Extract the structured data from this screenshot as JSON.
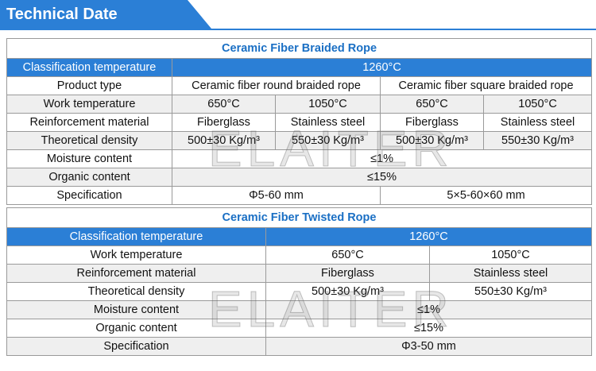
{
  "header": {
    "title": "Technical Date"
  },
  "watermark": "ELAITER",
  "tables": [
    {
      "title": "Ceramic Fiber Braided Rope",
      "rows": [
        [
          "Classification temperature",
          "1260°C"
        ],
        [
          "Product type",
          "Ceramic fiber round braided rope",
          "Ceramic fiber square braided rope"
        ],
        [
          "Work temperature",
          "650°C",
          "1050°C",
          "650°C",
          "1050°C"
        ],
        [
          "Reinforcement material",
          "Fiberglass",
          "Stainless steel",
          "Fiberglass",
          "Stainless steel"
        ],
        [
          "Theoretical density",
          "500±30 Kg/m³",
          "550±30 Kg/m³",
          "500±30 Kg/m³",
          "550±30 Kg/m³"
        ],
        [
          "Moisture content",
          "≤1%"
        ],
        [
          "Organic content",
          "≤15%"
        ],
        [
          "Specification",
          "Φ5-60 mm",
          "5×5-60×60 mm"
        ]
      ]
    },
    {
      "title": "Ceramic Fiber Twisted Rope",
      "rows": [
        [
          "Classification temperature",
          "1260°C"
        ],
        [
          "Work temperature",
          "650°C",
          "1050°C"
        ],
        [
          "Reinforcement material",
          "Fiberglass",
          "Stainless steel"
        ],
        [
          "Theoretical density",
          "500±30 Kg/m³",
          "550±30 Kg/m³"
        ],
        [
          "Moisture content",
          "≤1%"
        ],
        [
          "Organic content",
          "≤15%"
        ],
        [
          "Specification",
          "Φ3-50 mm"
        ]
      ]
    }
  ]
}
